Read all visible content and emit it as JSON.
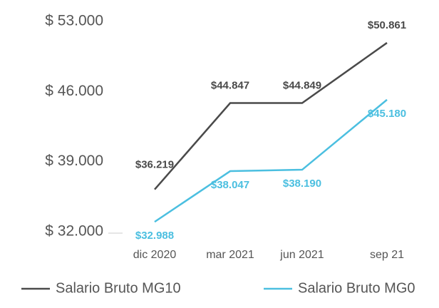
{
  "chart_data": {
    "type": "line",
    "categories": [
      "dic 2020",
      "mar 2021",
      "jun 2021",
      "sep 21"
    ],
    "series": [
      {
        "name": "Salario Bruto MG10",
        "color": "#4a4a4a",
        "values": [
          36219,
          44847,
          44849,
          50861
        ],
        "value_labels": [
          "$36.219",
          "$44.847",
          "$44.849",
          "$50.861"
        ]
      },
      {
        "name": "Salario Bruto MG0",
        "color": "#4bbfe0",
        "values": [
          32988,
          38047,
          38190,
          45180
        ],
        "value_labels": [
          "$32.988",
          "$38.047",
          "$38.190",
          "$45.180"
        ]
      }
    ],
    "ylim": [
      32000,
      53000
    ],
    "yticks": [
      {
        "value": 32000,
        "label": "$ 32.000"
      },
      {
        "value": 39000,
        "label": "$ 39.000"
      },
      {
        "value": 46000,
        "label": "$ 46.000"
      },
      {
        "value": 53000,
        "label": "$ 53.000"
      }
    ],
    "grid": false
  }
}
